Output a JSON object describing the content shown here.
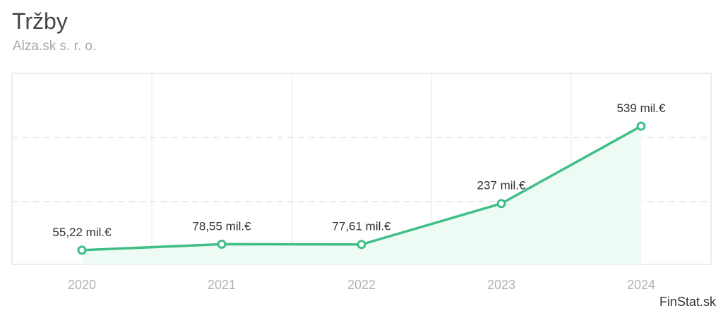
{
  "title": "Tržby",
  "subtitle": "Alza.sk s. r. o.",
  "credit": "FinStat.sk",
  "chart_data": {
    "type": "area",
    "title": "Tržby",
    "subtitle": "Alza.sk s. r. o.",
    "xlabel": "",
    "ylabel": "",
    "categories": [
      "2020",
      "2021",
      "2022",
      "2023",
      "2024"
    ],
    "series": [
      {
        "values": [
          55.22,
          78.55,
          77.61,
          237,
          539
        ],
        "labels": [
          "55,22 mil.€",
          "78,55 mil.€",
          "77,61 mil.€",
          "237 mil.€",
          "539 mil.€"
        ],
        "color": "#3fbf86",
        "fill": "#eefaf4"
      }
    ],
    "unit": "mil.€",
    "grid": true,
    "legend": "none"
  }
}
